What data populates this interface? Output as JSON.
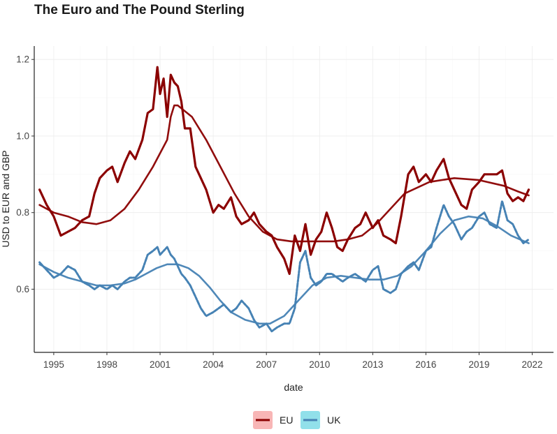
{
  "chart_data": {
    "type": "line",
    "title": "The Euro and The Pound Sterling",
    "xlabel": "date",
    "ylabel": "USD to EUR and GBP",
    "x_ticks": [
      "1995",
      "1998",
      "2001",
      "2004",
      "2007",
      "2010",
      "2013",
      "2016",
      "2019",
      "2022"
    ],
    "y_ticks": [
      "0.6",
      "0.8",
      "1.0",
      "1.2"
    ],
    "xlim": [
      1993.9,
      2023.2
    ],
    "ylim": [
      0.435,
      1.235
    ],
    "grid": true,
    "legend_position": "bottom",
    "series": [
      {
        "name": "EU",
        "color": "#8b0000",
        "legend_fill": "#f8b6b6",
        "x": [
          1994.2,
          1994.6,
          1995.0,
          1995.4,
          1995.8,
          1996.2,
          1996.6,
          1997.0,
          1997.3,
          1997.6,
          1998.0,
          1998.3,
          1998.6,
          1999.0,
          1999.3,
          1999.6,
          2000.0,
          2000.3,
          2000.6,
          2000.85,
          2001.0,
          2001.2,
          2001.4,
          2001.6,
          2001.8,
          2002.0,
          2002.2,
          2002.4,
          2002.7,
          2003.0,
          2003.3,
          2003.6,
          2004.0,
          2004.3,
          2004.6,
          2005.0,
          2005.3,
          2005.6,
          2006.0,
          2006.3,
          2006.6,
          2007.0,
          2007.3,
          2007.6,
          2008.0,
          2008.3,
          2008.6,
          2008.9,
          2009.2,
          2009.5,
          2009.8,
          2010.1,
          2010.4,
          2010.7,
          2011.0,
          2011.3,
          2011.6,
          2012.0,
          2012.3,
          2012.6,
          2013.0,
          2013.3,
          2013.6,
          2014.0,
          2014.3,
          2014.6,
          2015.0,
          2015.3,
          2015.6,
          2016.0,
          2016.3,
          2016.6,
          2017.0,
          2017.3,
          2017.6,
          2018.0,
          2018.3,
          2018.6,
          2019.0,
          2019.3,
          2019.6,
          2020.0,
          2020.3,
          2020.6,
          2020.9,
          2021.2,
          2021.5,
          2021.8
        ],
        "values": [
          0.86,
          0.82,
          0.79,
          0.74,
          0.75,
          0.76,
          0.78,
          0.79,
          0.85,
          0.89,
          0.91,
          0.92,
          0.88,
          0.93,
          0.96,
          0.94,
          0.99,
          1.06,
          1.07,
          1.18,
          1.11,
          1.15,
          1.05,
          1.16,
          1.14,
          1.13,
          1.09,
          1.02,
          1.02,
          0.92,
          0.89,
          0.86,
          0.8,
          0.82,
          0.81,
          0.84,
          0.79,
          0.77,
          0.78,
          0.8,
          0.77,
          0.75,
          0.74,
          0.71,
          0.68,
          0.64,
          0.74,
          0.7,
          0.77,
          0.69,
          0.73,
          0.75,
          0.8,
          0.76,
          0.71,
          0.7,
          0.73,
          0.76,
          0.77,
          0.8,
          0.76,
          0.78,
          0.74,
          0.73,
          0.72,
          0.79,
          0.9,
          0.92,
          0.88,
          0.9,
          0.88,
          0.91,
          0.94,
          0.89,
          0.86,
          0.82,
          0.81,
          0.86,
          0.88,
          0.9,
          0.9,
          0.9,
          0.91,
          0.85,
          0.83,
          0.84,
          0.83,
          0.86
        ],
        "trend": [
          0.82,
          0.8,
          0.79,
          0.775,
          0.77,
          0.78,
          0.81,
          0.86,
          0.92,
          0.99,
          1.05,
          1.08,
          1.08,
          1.05,
          0.99,
          0.92,
          0.85,
          0.79,
          0.75,
          0.73,
          0.725,
          0.725,
          0.725,
          0.725,
          0.73,
          0.74,
          0.77,
          0.81,
          0.85,
          0.88,
          0.89,
          0.885,
          0.87,
          0.855,
          0.845
        ],
        "trend_x": [
          1994.2,
          1995.0,
          1995.8,
          1996.6,
          1997.4,
          1998.2,
          1999.0,
          1999.8,
          2000.6,
          2001.4,
          2001.6,
          2001.8,
          2002.0,
          2002.8,
          2003.6,
          2004.4,
          2005.2,
          2006.0,
          2006.8,
          2007.6,
          2008.4,
          2009.2,
          2010.0,
          2010.8,
          2011.6,
          2012.4,
          2013.2,
          2014.0,
          2014.8,
          2016.2,
          2017.6,
          2019.0,
          2020.4,
          2021.2,
          2021.8
        ]
      },
      {
        "name": "UK",
        "color": "#4682b4",
        "legend_fill": "#91e0ea",
        "x": [
          1994.2,
          1994.6,
          1995.0,
          1995.4,
          1995.8,
          1996.2,
          1996.6,
          1997.0,
          1997.3,
          1997.6,
          1998.0,
          1998.3,
          1998.6,
          1999.0,
          1999.3,
          1999.6,
          2000.0,
          2000.3,
          2000.6,
          2000.85,
          2001.0,
          2001.2,
          2001.4,
          2001.6,
          2001.8,
          2002.0,
          2002.2,
          2002.4,
          2002.7,
          2003.0,
          2003.3,
          2003.6,
          2004.0,
          2004.3,
          2004.6,
          2005.0,
          2005.3,
          2005.6,
          2006.0,
          2006.3,
          2006.6,
          2007.0,
          2007.3,
          2007.6,
          2008.0,
          2008.3,
          2008.6,
          2008.9,
          2009.2,
          2009.5,
          2009.8,
          2010.1,
          2010.4,
          2010.7,
          2011.0,
          2011.3,
          2011.6,
          2012.0,
          2012.3,
          2012.6,
          2013.0,
          2013.3,
          2013.6,
          2014.0,
          2014.3,
          2014.6,
          2015.0,
          2015.3,
          2015.6,
          2016.0,
          2016.3,
          2016.6,
          2017.0,
          2017.3,
          2017.6,
          2018.0,
          2018.3,
          2018.6,
          2019.0,
          2019.3,
          2019.6,
          2020.0,
          2020.3,
          2020.6,
          2020.9,
          2021.2,
          2021.5,
          2021.8
        ],
        "values": [
          0.67,
          0.65,
          0.63,
          0.64,
          0.66,
          0.65,
          0.62,
          0.61,
          0.6,
          0.61,
          0.6,
          0.61,
          0.6,
          0.62,
          0.63,
          0.63,
          0.65,
          0.69,
          0.7,
          0.71,
          0.69,
          0.7,
          0.71,
          0.69,
          0.68,
          0.66,
          0.64,
          0.63,
          0.61,
          0.58,
          0.55,
          0.53,
          0.54,
          0.55,
          0.56,
          0.54,
          0.55,
          0.57,
          0.55,
          0.52,
          0.5,
          0.51,
          0.49,
          0.5,
          0.51,
          0.51,
          0.55,
          0.67,
          0.7,
          0.63,
          0.61,
          0.62,
          0.64,
          0.64,
          0.63,
          0.62,
          0.63,
          0.64,
          0.63,
          0.62,
          0.65,
          0.66,
          0.6,
          0.59,
          0.6,
          0.64,
          0.66,
          0.67,
          0.65,
          0.7,
          0.71,
          0.76,
          0.82,
          0.79,
          0.77,
          0.73,
          0.75,
          0.76,
          0.79,
          0.8,
          0.77,
          0.76,
          0.83,
          0.78,
          0.77,
          0.74,
          0.72,
          0.73
        ],
        "trend": [
          0.665,
          0.645,
          0.63,
          0.62,
          0.61,
          0.61,
          0.615,
          0.625,
          0.64,
          0.655,
          0.665,
          0.665,
          0.655,
          0.635,
          0.605,
          0.57,
          0.54,
          0.52,
          0.51,
          0.51,
          0.53,
          0.57,
          0.61,
          0.63,
          0.635,
          0.63,
          0.625,
          0.625,
          0.635,
          0.66,
          0.7,
          0.745,
          0.78,
          0.79,
          0.785,
          0.765,
          0.74,
          0.72
        ],
        "trend_x": [
          1994.2,
          1995.0,
          1995.8,
          1996.6,
          1997.4,
          1998.2,
          1999.0,
          1999.6,
          2000.2,
          2000.8,
          2001.4,
          2002.0,
          2002.6,
          2003.2,
          2003.8,
          2004.4,
          2005.0,
          2005.8,
          2006.6,
          2007.2,
          2008.0,
          2008.8,
          2009.6,
          2010.4,
          2011.2,
          2012.0,
          2012.8,
          2013.6,
          2014.4,
          2015.2,
          2016.0,
          2016.8,
          2017.6,
          2018.4,
          2019.2,
          2020.0,
          2020.8,
          2021.8
        ]
      }
    ]
  }
}
